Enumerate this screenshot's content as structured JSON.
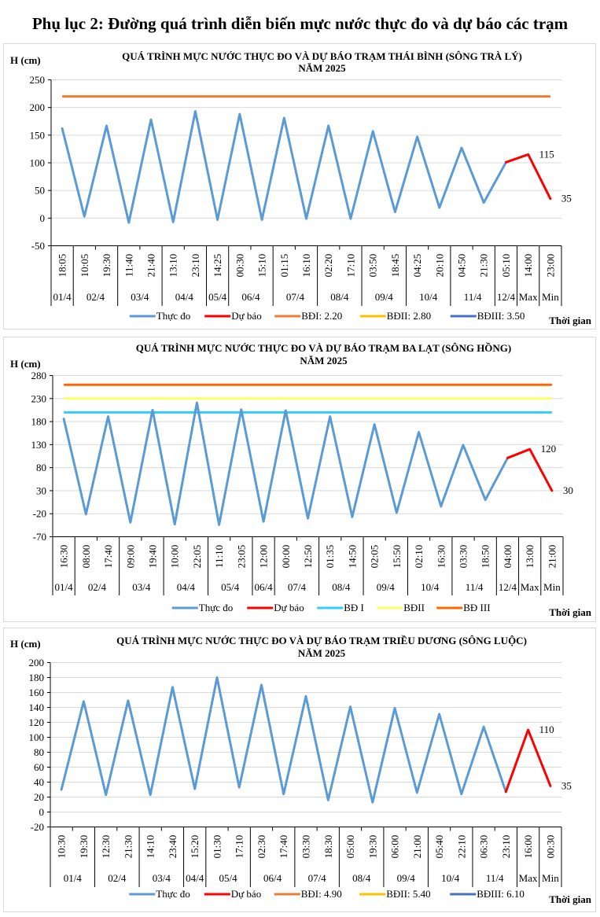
{
  "page_title": "Phụ lục 2: Đường quá trình diễn biến mực nước thực đo và dự báo các trạm",
  "colors": {
    "observed": "#5b9bd5",
    "forecast": "#ff0000",
    "grid": "#d9d9d9"
  },
  "chart_data": [
    {
      "type": "line",
      "title": "QUÁ TRÌNH MỰC NƯỚC THỰC ĐO VÀ DỰ BÁO TRẠM THÁI BÌNH (SÔNG TRÀ LÝ)",
      "subtitle": "NĂM 2025",
      "ylabel": "H (cm)",
      "xlabel": "Thời gian",
      "ylim": [
        -50,
        250
      ],
      "yticks": [
        250,
        200,
        150,
        100,
        50,
        0,
        -50
      ],
      "grid": true,
      "legend_position": "bottom",
      "categories": [
        "18:05",
        "10:05",
        "19:30",
        "11:40",
        "21:40",
        "13:10",
        "23:10",
        "14:25",
        "00:30",
        "15:10",
        "01:15",
        "16:10",
        "02:20",
        "17:10",
        "03:50",
        "18:45",
        "04:25",
        "20:10",
        "04:50",
        "21:30",
        "05:10",
        "14:00",
        "23:00"
      ],
      "groups": [
        {
          "label": "01/4",
          "span": 1
        },
        {
          "label": "02/4",
          "span": 2
        },
        {
          "label": "03/4",
          "span": 2
        },
        {
          "label": "04/4",
          "span": 2
        },
        {
          "label": "05/4",
          "span": 1
        },
        {
          "label": "06/4",
          "span": 2
        },
        {
          "label": "07/4",
          "span": 2
        },
        {
          "label": "08/4",
          "span": 2
        },
        {
          "label": "09/4",
          "span": 2
        },
        {
          "label": "10/4",
          "span": 2
        },
        {
          "label": "11/4",
          "span": 2
        },
        {
          "label": "12/4",
          "span": 1
        },
        {
          "label": "Max",
          "span": 1
        },
        {
          "label": "Min",
          "span": 1
        }
      ],
      "series": [
        {
          "name": "Thực đo",
          "color": "#5b9bd5",
          "values": [
            162,
            3,
            167,
            -8,
            178,
            -7,
            193,
            -3,
            188,
            -3,
            181,
            -1,
            167,
            -1,
            157,
            11,
            147,
            19,
            127,
            28,
            101,
            null,
            null
          ]
        },
        {
          "name": "Dự báo",
          "color": "#ff0000",
          "values": [
            null,
            null,
            null,
            null,
            null,
            null,
            null,
            null,
            null,
            null,
            null,
            null,
            null,
            null,
            null,
            null,
            null,
            null,
            null,
            null,
            101,
            115,
            35
          ]
        },
        {
          "name": "BĐI: 2.20",
          "color": "#ed7d31",
          "level": 220
        },
        {
          "name": "BĐII: 2.80",
          "color": "#ffc000",
          "level": null
        },
        {
          "name": "BĐIII: 3.50",
          "color": "#4472c4",
          "level": null
        }
      ],
      "annotations": [
        {
          "label": "115",
          "index": 21
        },
        {
          "label": "35",
          "index": 22
        }
      ]
    },
    {
      "type": "line",
      "title": "QUÁ TRÌNH MỰC NƯỚC THỰC ĐO VÀ DỰ BÁO TRẠM BA LẠT (SÔNG HỒNG)",
      "subtitle": "NĂM 2025",
      "ylabel": "H (cm)",
      "xlabel": "Thời gian",
      "ylim": [
        -70,
        280
      ],
      "yticks": [
        280,
        230,
        180,
        130,
        80,
        30,
        -20,
        -70
      ],
      "grid": true,
      "legend_position": "bottom",
      "categories": [
        "16:30",
        "08:00",
        "17:40",
        "09:00",
        "19:40",
        "10:00",
        "22:05",
        "11:10",
        "23:05",
        "12:00",
        "00:00",
        "12:50",
        "01:35",
        "14:50",
        "02:05",
        "15:50",
        "02:10",
        "16:30",
        "03:30",
        "18:50",
        "04:00",
        "13:00",
        "21:00"
      ],
      "groups": [
        {
          "label": "01/4",
          "span": 1
        },
        {
          "label": "02/4",
          "span": 2
        },
        {
          "label": "03/4",
          "span": 2
        },
        {
          "label": "04/4",
          "span": 2
        },
        {
          "label": "05/4",
          "span": 2
        },
        {
          "label": "06/4",
          "span": 1
        },
        {
          "label": "07/4",
          "span": 2
        },
        {
          "label": "08/4",
          "span": 2
        },
        {
          "label": "09/4",
          "span": 2
        },
        {
          "label": "10/4",
          "span": 2
        },
        {
          "label": "11/4",
          "span": 2
        },
        {
          "label": "12/4",
          "span": 1
        },
        {
          "label": "Max",
          "span": 1
        },
        {
          "label": "Min",
          "span": 1
        }
      ],
      "series": [
        {
          "name": "Thực đo",
          "color": "#5b9bd5",
          "values": [
            186,
            -21,
            191,
            -39,
            205,
            -43,
            221,
            -44,
            206,
            -37,
            204,
            -30,
            191,
            -27,
            174,
            -18,
            157,
            -4,
            129,
            10,
            101,
            null,
            null
          ]
        },
        {
          "name": "Dự báo",
          "color": "#ff0000",
          "values": [
            null,
            null,
            null,
            null,
            null,
            null,
            null,
            null,
            null,
            null,
            null,
            null,
            null,
            null,
            null,
            null,
            null,
            null,
            null,
            null,
            101,
            120,
            30
          ]
        },
        {
          "name": "BĐ I",
          "color": "#33ccff",
          "level": 200
        },
        {
          "name": "BĐII",
          "color": "#ffff66",
          "level": 230
        },
        {
          "name": "BĐ III",
          "color": "#ff6600",
          "level": 260
        }
      ],
      "annotations": [
        {
          "label": "120",
          "index": 21
        },
        {
          "label": "30",
          "index": 22
        }
      ]
    },
    {
      "type": "line",
      "title": "QUÁ TRÌNH MỰC NƯỚC THỰC ĐO VÀ DỰ BÁO TRẠM TRIỀU DƯƠNG  (SÔNG LUỘC)",
      "subtitle": "NĂM 2025",
      "ylabel": "H (cm)",
      "xlabel": "Thời gian",
      "ylim": [
        -20,
        200
      ],
      "yticks": [
        200,
        180,
        160,
        140,
        120,
        100,
        80,
        60,
        40,
        20,
        0,
        -20
      ],
      "grid": true,
      "legend_position": "bottom",
      "categories": [
        "10:30",
        "19:30",
        "12:30",
        "21:30",
        "14:10",
        "23:40",
        "15:20",
        "01:30",
        "17:10",
        "02:30",
        "17:40",
        "03:30",
        "18:30",
        "05:00",
        "19:30",
        "06:00",
        "21:00",
        "05:40",
        "22:10",
        "06:30",
        "23:10",
        "16:00",
        "00:30"
      ],
      "groups": [
        {
          "label": "01/4",
          "span": 2
        },
        {
          "label": "02/4",
          "span": 2
        },
        {
          "label": "03/4",
          "span": 2
        },
        {
          "label": "04/4",
          "span": 1
        },
        {
          "label": "05/4",
          "span": 2
        },
        {
          "label": "06/4",
          "span": 2
        },
        {
          "label": "07/4",
          "span": 2
        },
        {
          "label": "08/4",
          "span": 2
        },
        {
          "label": "09/4",
          "span": 2
        },
        {
          "label": "10/4",
          "span": 2
        },
        {
          "label": "11/4",
          "span": 2
        },
        {
          "label": "Max",
          "span": 1
        },
        {
          "label": "Min",
          "span": 1
        }
      ],
      "series": [
        {
          "name": "Thực đo",
          "color": "#5b9bd5",
          "values": [
            30,
            148,
            23,
            149,
            23,
            167,
            31,
            180,
            33,
            170,
            24,
            155,
            16,
            141,
            13,
            139,
            26,
            131,
            24,
            114,
            27,
            null,
            null
          ]
        },
        {
          "name": "Dự báo",
          "color": "#ff0000",
          "values": [
            null,
            null,
            null,
            null,
            null,
            null,
            null,
            null,
            null,
            null,
            null,
            null,
            null,
            null,
            null,
            null,
            null,
            null,
            null,
            null,
            27,
            110,
            35
          ]
        },
        {
          "name": "BĐI: 4.90",
          "color": "#ed7d31",
          "level": null
        },
        {
          "name": "BĐII: 5.40",
          "color": "#ffc000",
          "level": null
        },
        {
          "name": "BĐIII: 6.10",
          "color": "#4472c4",
          "level": null
        }
      ],
      "annotations": [
        {
          "label": "110",
          "index": 21
        },
        {
          "label": "35",
          "index": 22
        }
      ]
    }
  ]
}
